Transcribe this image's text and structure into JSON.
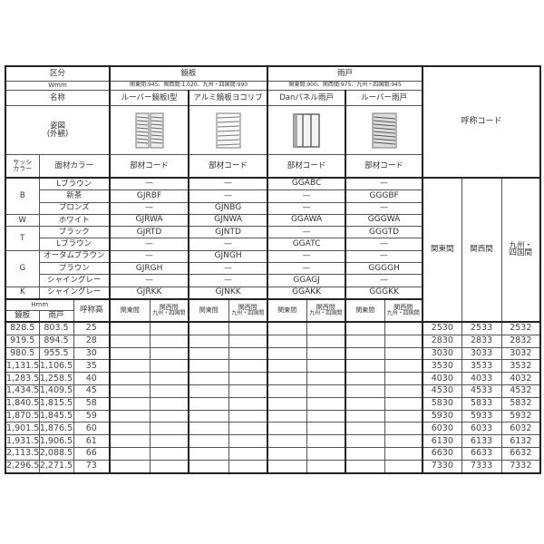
{
  "header": {
    "kubun": "区分",
    "wmm": "Wmm",
    "meisho": "名称",
    "sugata": "姿図",
    "sugata_sub": "(外観)",
    "sash_color": "サッシ",
    "sash_color2": "カラー",
    "face_color": "面材カラー",
    "group_kagami": "鏡板",
    "group_amado": "雨戸",
    "w_kagami": "関東間:945、関西間:1,020、九州・四国間:990",
    "w_amado": "関東間:900、関西間:975、九州・四国間:945",
    "products": [
      {
        "name": "ルーバー鏡板Ⅰ型",
        "icon": "louver-panel-type1-icon",
        "code_label": "部材コード"
      },
      {
        "name": "アルミ鏡板ヨコリブ",
        "icon": "aluminum-horizontal-rib-panel-icon",
        "code_label": "部材コード"
      },
      {
        "name": "Danパネル雨戸",
        "icon": "dan-panel-shutter-icon",
        "code_label": "部材コード"
      },
      {
        "name": "ルーバー雨戸",
        "icon": "louver-shutter-icon",
        "code_label": "部材コード"
      }
    ],
    "nominal_code": "呼称コード",
    "regions": [
      "関東間",
      "関西間",
      "九州・\n四国間"
    ],
    "hmm": "Hmm",
    "h_kagami": "鏡板",
    "h_amado": "雨戸",
    "nominal_height": "呼称高",
    "sub_kanto": "関東間",
    "sub_kansai": "関西間",
    "sub_kyushu": "九州・四国間"
  },
  "color_rows": [
    {
      "sash": "B",
      "span": 3,
      "color": "Lブラウン",
      "codes": [
        "—",
        "—",
        "GGABC",
        "—"
      ]
    },
    {
      "color": "新茶",
      "codes": [
        "GJRBF",
        "—",
        "—",
        "GGGBF"
      ]
    },
    {
      "color": "ブロンズ",
      "codes": [
        "—",
        "GJNBG",
        "—",
        "—"
      ]
    },
    {
      "sash": "W",
      "span": 1,
      "color": "ホワイト",
      "codes": [
        "GJRWA",
        "GJNWA",
        "GGAWA",
        "GGGWA"
      ]
    },
    {
      "sash": "T",
      "span": 2,
      "color": "ブラック",
      "codes": [
        "GJRTD",
        "GJNTD",
        "—",
        "GGGTD"
      ]
    },
    {
      "color": "Lブラウン",
      "codes": [
        "—",
        "—",
        "GGATC",
        "—"
      ]
    },
    {
      "sash": "G",
      "span": 3,
      "color": "オータムブラウン",
      "codes": [
        "—",
        "GJNGH",
        "—",
        "—"
      ]
    },
    {
      "color": "ブラウン",
      "codes": [
        "GJRGH",
        "—",
        "—",
        "GGGGH"
      ]
    },
    {
      "color": "シャイングレー",
      "codes": [
        "—",
        "—",
        "GGAGJ",
        "—"
      ]
    },
    {
      "sash": "K",
      "span": 1,
      "color": "シャイングレー",
      "codes": [
        "GJRKK",
        "GJNKK",
        "GGAKK",
        "GGGKK"
      ]
    }
  ],
  "size_rows": [
    {
      "kagami": "828.5",
      "amado": "803.5",
      "height": "25",
      "codes": [
        "2530",
        "2533",
        "2532"
      ]
    },
    {
      "kagami": "919.5",
      "amado": "894.5",
      "height": "28",
      "codes": [
        "2830",
        "2833",
        "2832"
      ]
    },
    {
      "kagami": "980.5",
      "amado": "955.5",
      "height": "30",
      "codes": [
        "3030",
        "3033",
        "3032"
      ]
    },
    {
      "kagami": "1,131.5",
      "amado": "1,106.5",
      "height": "35",
      "codes": [
        "3530",
        "3533",
        "3532"
      ]
    },
    {
      "kagami": "1,283.5",
      "amado": "1,258.5",
      "height": "40",
      "codes": [
        "4030",
        "4033",
        "4032"
      ]
    },
    {
      "kagami": "1,434.5",
      "amado": "1,409.5",
      "height": "45",
      "codes": [
        "4530",
        "4533",
        "4532"
      ]
    },
    {
      "kagami": "1,840.5",
      "amado": "1,815.5",
      "height": "58",
      "codes": [
        "5830",
        "5833",
        "5832"
      ]
    },
    {
      "kagami": "1,870.5",
      "amado": "1,845.5",
      "height": "59",
      "codes": [
        "5930",
        "5933",
        "5932"
      ]
    },
    {
      "kagami": "1,901.5",
      "amado": "1,876.5",
      "height": "60",
      "codes": [
        "6030",
        "6033",
        "6032"
      ]
    },
    {
      "kagami": "1,931.5",
      "amado": "1,906.5",
      "height": "61",
      "codes": [
        "6130",
        "6133",
        "6132"
      ]
    },
    {
      "kagami": "2,113.5",
      "amado": "2,088.5",
      "height": "66",
      "codes": [
        "6630",
        "6633",
        "6632"
      ]
    },
    {
      "kagami": "2,296.5",
      "amado": "2,271.5",
      "height": "73",
      "codes": [
        "7330",
        "7333",
        "7332"
      ]
    }
  ]
}
